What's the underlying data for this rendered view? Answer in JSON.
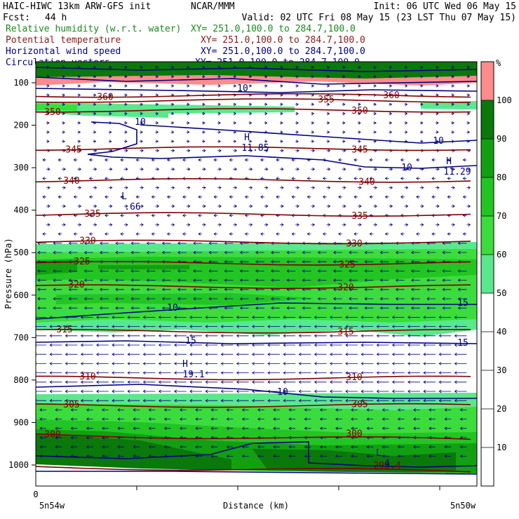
{
  "header": {
    "model": "HAIC-HIWC 13km ARW-GFS init",
    "org": "NCAR/MMM",
    "init": "Init: 06 UTC Wed 06 May 15",
    "fcst_label": "Fcst:",
    "fcst_value": "44 h",
    "valid": "Valid: 02 UTC Fri 08 May 15 (23 LST Thu 07 May 15)"
  },
  "fields": [
    {
      "name": "Relative humidity (w.r.t. water)",
      "xy": "XY= 251.0,100.0 to 284.7,100.0",
      "color": "#1a8a1a"
    },
    {
      "name": "Potential temperature",
      "xy": "XY= 251.0,100.0 to 284.7,100.0",
      "color": "#8b1a1a"
    },
    {
      "name": "Horizontal wind speed",
      "xy": "XY= 251.0,100.0 to 284.7,100.0",
      "color": "#000080"
    },
    {
      "name": "Circulation vectors",
      "xy": "XY= 251.0,100.0 to 284.7,100.0",
      "color": "#000080"
    }
  ],
  "colorbar": {
    "unit": "%",
    "ticks": [
      "10",
      "20",
      "30",
      "40",
      "50",
      "60",
      "70",
      "80",
      "90",
      "100"
    ],
    "bands": [
      {
        "lo": 0,
        "hi": 50,
        "color": "#ffffff"
      },
      {
        "lo": 50,
        "hi": 60,
        "color": "#5ae88c"
      },
      {
        "lo": 60,
        "hi": 70,
        "color": "#3cdc3c"
      },
      {
        "lo": 70,
        "hi": 80,
        "color": "#22c522"
      },
      {
        "lo": 80,
        "hi": 90,
        "color": "#12a012"
      },
      {
        "lo": 90,
        "hi": 100,
        "color": "#0a780a"
      },
      {
        "lo": 100,
        "hi": 110,
        "color": "#ff8c8c"
      }
    ]
  },
  "chart_data": {
    "type": "cross-section",
    "ylabel": "Pressure (hPa)",
    "xlabel": "Distance (km)",
    "x_tick_zero": "0",
    "x_left_label": "5n54w",
    "x_right_label": "5n50w",
    "y_ticks": [
      100,
      200,
      300,
      400,
      500,
      600,
      700,
      800,
      900,
      1000
    ],
    "theta_isentropes": [
      {
        "label": "360",
        "p": 130
      },
      {
        "label": "355",
        "p": 142
      },
      {
        "label": "350",
        "p": 165
      },
      {
        "label": "345",
        "p": 255
      },
      {
        "label": "340",
        "p": 330
      },
      {
        "label": "335",
        "p": 410
      },
      {
        "label": "330",
        "p": 475
      },
      {
        "label": "325",
        "p": 525
      },
      {
        "label": "320",
        "p": 580
      },
      {
        "label": "315",
        "p": 685
      },
      {
        "label": "310",
        "p": 795
      },
      {
        "label": "305",
        "p": 860
      },
      {
        "label": "300",
        "p": 930
      },
      {
        "label": "298.4",
        "p": 1005
      }
    ],
    "wind_contour_labels": [
      "10",
      "10",
      "10",
      "10",
      "10",
      "15",
      "15",
      "15",
      "10"
    ],
    "extrema": [
      {
        "type": "H",
        "value": "11.85"
      },
      {
        "type": "H",
        "value": "11.29"
      },
      {
        "type": "L",
        "value": ".66"
      },
      {
        "type": "H",
        "value": "19.1"
      },
      {
        "type": "L",
        "value": "4"
      }
    ],
    "rh_units": "%"
  }
}
